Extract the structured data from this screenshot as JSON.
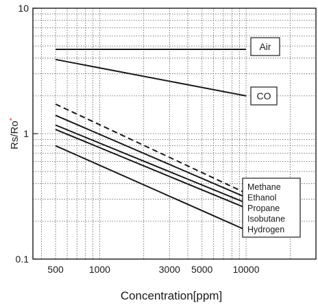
{
  "chart_data": {
    "type": "line",
    "xlabel": "Concentration[ppm]",
    "ylabel": "Rs/Ro",
    "ylabel_marker": "*",
    "x_scale": "log",
    "y_scale": "log",
    "xlim": [
      350,
      30000
    ],
    "ylim": [
      0.1,
      10
    ],
    "x_ticks": [
      500,
      1000,
      3000,
      5000,
      10000
    ],
    "x_tick_labels": [
      "500",
      "1000",
      "3000",
      "5000",
      "10000"
    ],
    "y_ticks": [
      0.1,
      1,
      10
    ],
    "y_tick_labels": [
      "0.1",
      "1",
      "10"
    ],
    "grid": true,
    "colors": {
      "line": "#1a1a1a",
      "grid": "#555555",
      "marker": "#e8413c"
    },
    "series": [
      {
        "name": "Air",
        "style": "solid",
        "points": [
          [
            500,
            4.7
          ],
          [
            10000,
            4.7
          ]
        ]
      },
      {
        "name": "CO",
        "style": "solid",
        "points": [
          [
            500,
            3.9
          ],
          [
            10000,
            2.0
          ]
        ]
      },
      {
        "name": "Methane",
        "style": "dashed",
        "points": [
          [
            500,
            1.72
          ],
          [
            10000,
            0.335
          ]
        ]
      },
      {
        "name": "Ethanol",
        "style": "solid",
        "points": [
          [
            500,
            1.4
          ],
          [
            10000,
            0.31
          ]
        ]
      },
      {
        "name": "Propane",
        "style": "solid",
        "points": [
          [
            500,
            1.17
          ],
          [
            10000,
            0.28
          ]
        ]
      },
      {
        "name": "Isobutane",
        "style": "solid",
        "points": [
          [
            500,
            1.08
          ],
          [
            10000,
            0.255
          ]
        ]
      },
      {
        "name": "Hydrogen",
        "style": "solid",
        "points": [
          [
            500,
            0.8
          ],
          [
            10000,
            0.17
          ]
        ]
      }
    ],
    "labels": {
      "air": "Air",
      "co": "CO",
      "legend": [
        "Methane",
        "Ethanol",
        "Propane",
        "Isobutane",
        "Hydrogen"
      ]
    }
  }
}
